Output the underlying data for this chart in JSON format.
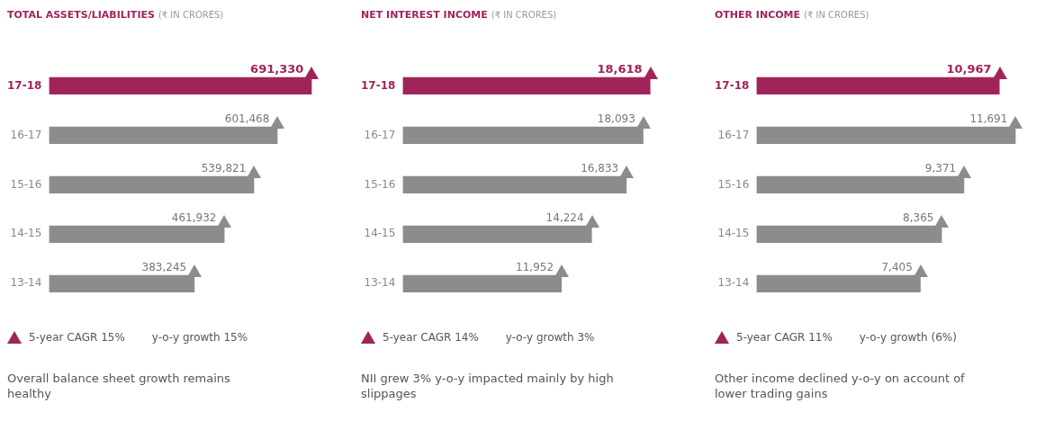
{
  "chart_data": [
    {
      "type": "bar",
      "orientation": "horizontal",
      "title": "TOTAL ASSETS/LIABILITIES",
      "subtitle": "(₹ IN CRORES)",
      "categories": [
        "17-18",
        "16-17",
        "15-16",
        "14-15",
        "13-14"
      ],
      "values": [
        691330,
        601468,
        539821,
        461932,
        383245
      ],
      "value_labels": [
        "691,330",
        "601,468",
        "539,821",
        "461,932",
        "383,245"
      ],
      "colors": [
        "#a0245a",
        "#8c8c8c",
        "#8c8c8c",
        "#8c8c8c",
        "#8c8c8c"
      ],
      "marker": "triangle",
      "grid": false,
      "legend": false,
      "tick_labels": "y",
      "annotations": [
        "5-year CAGR 15%",
        "y-o-y growth 15%",
        "Overall balance sheet growth remains healthy"
      ]
    },
    {
      "type": "bar",
      "orientation": "horizontal",
      "title": "NET INTEREST INCOME",
      "subtitle": "(₹ IN CRORES)",
      "categories": [
        "17-18",
        "16-17",
        "15-16",
        "14-15",
        "13-14"
      ],
      "values": [
        18618,
        18093,
        16833,
        14224,
        11952
      ],
      "value_labels": [
        "18,618",
        "18,093",
        "16,833",
        "14,224",
        "11,952"
      ],
      "colors": [
        "#a0245a",
        "#8c8c8c",
        "#8c8c8c",
        "#8c8c8c",
        "#8c8c8c"
      ],
      "marker": "triangle",
      "grid": false,
      "legend": false,
      "tick_labels": "y",
      "annotations": [
        "5-year CAGR 14%",
        "y-o-y growth 3%",
        "NII grew 3% y-o-y impacted mainly by high slippages"
      ]
    },
    {
      "type": "bar",
      "orientation": "horizontal",
      "title": "OTHER INCOME",
      "subtitle": "(₹ IN CRORES)",
      "categories": [
        "17-18",
        "16-17",
        "15-16",
        "14-15",
        "13-14"
      ],
      "values": [
        10967,
        11691,
        9371,
        8365,
        7405
      ],
      "value_labels": [
        "10,967",
        "11,691",
        "9,371",
        "8,365",
        "7,405"
      ],
      "colors": [
        "#a0245a",
        "#8c8c8c",
        "#8c8c8c",
        "#8c8c8c",
        "#8c8c8c"
      ],
      "marker": "triangle",
      "grid": false,
      "legend": false,
      "tick_labels": "y",
      "annotations": [
        "5-year CAGR 11%",
        "y-o-y growth (6%)",
        "Other income declined y-o-y on account of lower trading gains"
      ]
    }
  ]
}
